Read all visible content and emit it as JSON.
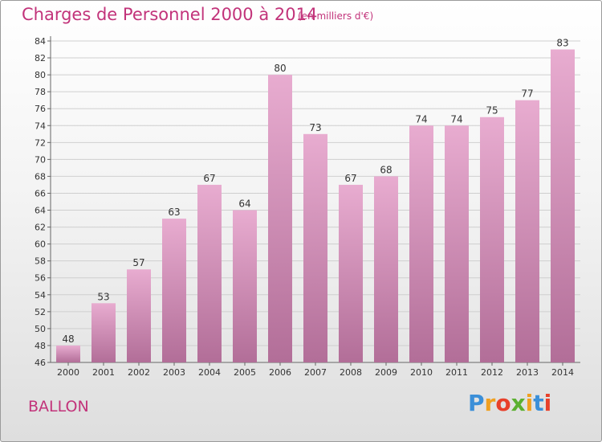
{
  "chart_data": {
    "type": "bar",
    "title": "Charges de Personnel 2000 à 2014",
    "subtitle": "(en milliers d'€)",
    "categories": [
      "2000",
      "2001",
      "2002",
      "2003",
      "2004",
      "2005",
      "2006",
      "2007",
      "2008",
      "2009",
      "2010",
      "2011",
      "2012",
      "2013",
      "2014"
    ],
    "values": [
      48,
      53,
      57,
      63,
      67,
      64,
      80,
      73,
      67,
      68,
      74,
      74,
      75,
      77,
      83
    ],
    "ylim": [
      46,
      84
    ],
    "yticks": [
      46,
      48,
      50,
      52,
      54,
      56,
      58,
      60,
      62,
      64,
      66,
      68,
      70,
      72,
      74,
      76,
      78,
      80,
      82,
      84
    ],
    "grid": true,
    "bar_color": "#d47fae"
  },
  "place_label": "BALLON",
  "logo": {
    "letters": [
      "P",
      "r",
      "o",
      "x",
      "i",
      "t",
      "i"
    ],
    "colors": [
      "#3b8fd8",
      "#f0a020",
      "#e8402a",
      "#5bb030",
      "#f0a020",
      "#3b8fd8",
      "#e8402a"
    ]
  }
}
